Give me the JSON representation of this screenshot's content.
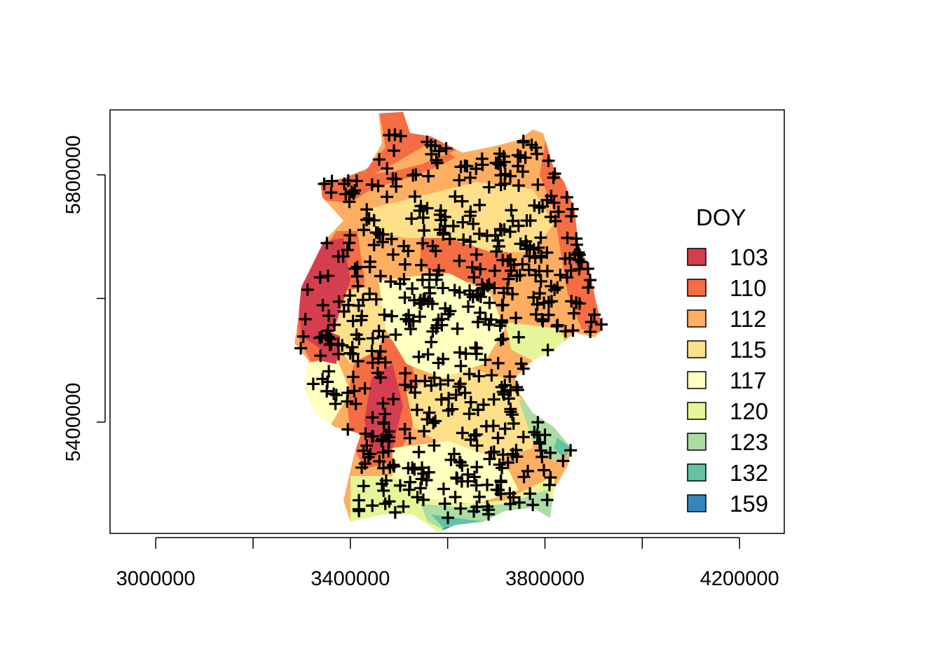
{
  "chart_data": {
    "type": "heatmap",
    "title": "",
    "xlabel": "",
    "ylabel": "",
    "xlim": [
      2906000,
      4292000
    ],
    "ylim": [
      5220000,
      5905000
    ],
    "x_ticks": [
      3000000,
      3200000,
      3400000,
      3600000,
      3800000,
      4000000,
      4200000
    ],
    "x_tick_labels": [
      "3000000",
      "",
      "3400000",
      "",
      "3800000",
      "",
      "4200000"
    ],
    "y_ticks": [
      5400000,
      5600000,
      5800000,
      6000000
    ],
    "y_tick_labels": [
      "5400000",
      "",
      "5800000",
      ""
    ],
    "legend": {
      "title": "DOY",
      "placement": "right",
      "entries": [
        {
          "label": "103",
          "color": "#d53e4f"
        },
        {
          "label": "110",
          "color": "#f46d43"
        },
        {
          "label": "112",
          "color": "#fdae61"
        },
        {
          "label": "115",
          "color": "#fee08b"
        },
        {
          "label": "117",
          "color": "#ffffbf"
        },
        {
          "label": "120",
          "color": "#e6f598"
        },
        {
          "label": "123",
          "color": "#abdda4"
        },
        {
          "label": "132",
          "color": "#66c2a5"
        },
        {
          "label": "159",
          "color": "#3288bd"
        }
      ]
    },
    "point_marker": "+",
    "point_color": "#000000"
  }
}
